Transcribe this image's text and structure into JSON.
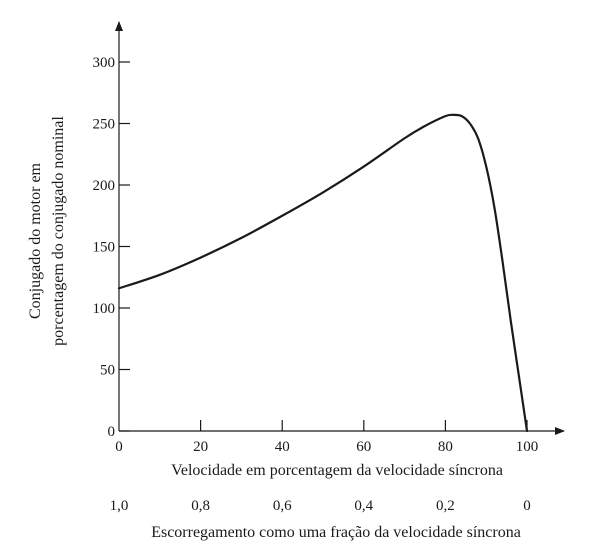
{
  "chart_data": {
    "type": "line",
    "title": "",
    "xlabel": "Velocidade em porcentagem da velocidade síncrona",
    "ylabel_lines": [
      "Conjugado do motor em",
      "porcentagem do conjugado nominal"
    ],
    "secondary_xlabel": "Escorregamento como uma fração da velocidade síncrona",
    "xlim": [
      0,
      100
    ],
    "ylim": [
      0,
      300
    ],
    "x_ticks": [
      0,
      20,
      40,
      60,
      80,
      100
    ],
    "y_ticks": [
      0,
      50,
      100,
      150,
      200,
      250,
      300
    ],
    "secondary_ticks": [
      {
        "at": 0,
        "label": "1,0"
      },
      {
        "at": 20,
        "label": "0,8"
      },
      {
        "at": 40,
        "label": "0,6"
      },
      {
        "at": 60,
        "label": "0,4"
      },
      {
        "at": 80,
        "label": "0,2"
      },
      {
        "at": 100,
        "label": "0"
      }
    ],
    "grid": false,
    "line_color": "#1a1a1a",
    "series": [
      {
        "x": [
          0,
          10,
          20,
          30,
          40,
          50,
          60,
          70,
          75,
          80,
          82,
          84,
          86,
          88,
          90,
          92,
          94,
          96,
          98,
          100
        ],
        "y": [
          116,
          127,
          141,
          157,
          175,
          194,
          215,
          238,
          248,
          256,
          257,
          256,
          250,
          238,
          215,
          182,
          138,
          90,
          45,
          0
        ]
      }
    ]
  }
}
